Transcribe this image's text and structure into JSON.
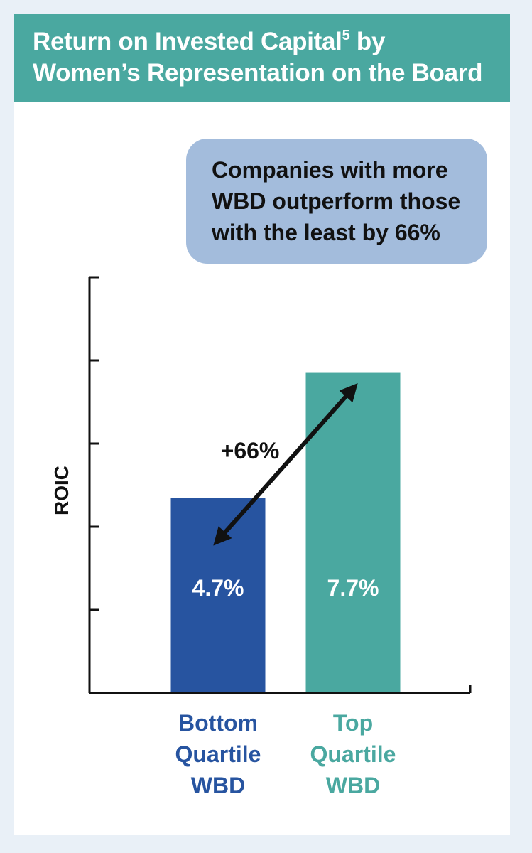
{
  "header": {
    "title_main": "Return on Invested Capital",
    "title_superscript": "5",
    "title_tail": " by",
    "title_line2": "Women’s Representation on the Board"
  },
  "callout": {
    "lines": [
      "Companies with more",
      "WBD outperform those",
      "with the least by 66%"
    ]
  },
  "colors": {
    "header_bg": "#4aa8a0",
    "callout_bg": "#a3bcdc",
    "bar_bottom": "#2754a0",
    "bar_top": "#4aa8a0",
    "axis": "#111111"
  },
  "chart_data": {
    "type": "bar",
    "categories": [
      "Bottom Quartile WBD",
      "Top Quartile WBD"
    ],
    "category_lines": [
      [
        "Bottom",
        "Quartile",
        "WBD"
      ],
      [
        "Top",
        "Quartile",
        "WBD"
      ]
    ],
    "values": [
      4.7,
      7.7
    ],
    "data_labels": [
      "4.7%",
      "7.7%"
    ],
    "ylabel": "ROIC",
    "ylim": [
      0,
      10
    ],
    "y_ticks": [
      2,
      4,
      6,
      8,
      10
    ],
    "y_tick_labels_shown": false,
    "annotation": {
      "text": "+66%",
      "from_category": 0,
      "to_category": 1,
      "style": "double-headed arrow"
    }
  }
}
